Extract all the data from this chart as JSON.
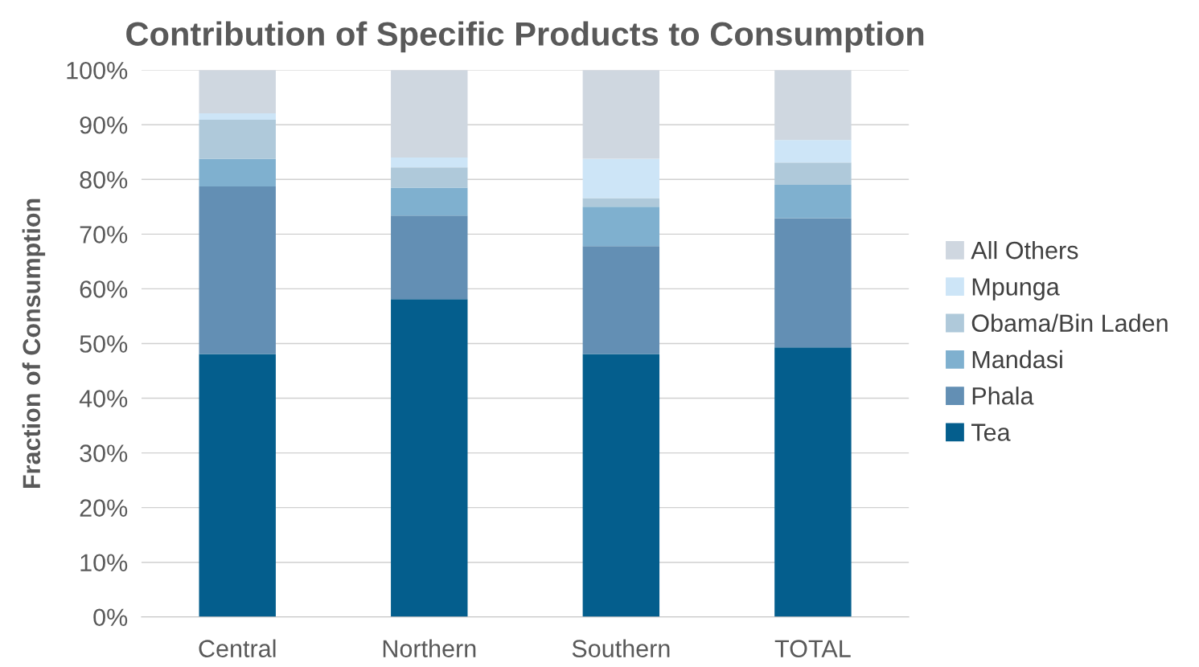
{
  "chart_data": {
    "type": "bar",
    "title": "Contribution of Specific Products to Consumption",
    "ylabel": "Fraction of Consumption",
    "categories": [
      "Central",
      "Northern",
      "Southern",
      "TOTAL"
    ],
    "stacked": true,
    "grid": "y",
    "legend": "right",
    "ylim": [
      0,
      100
    ],
    "yticks": [
      {
        "value": 0,
        "label": "0%"
      },
      {
        "value": 10,
        "label": "10%"
      },
      {
        "value": 20,
        "label": "20%"
      },
      {
        "value": 30,
        "label": "30%"
      },
      {
        "value": 40,
        "label": "40%"
      },
      {
        "value": 50,
        "label": "50%"
      },
      {
        "value": 60,
        "label": "60%"
      },
      {
        "value": 70,
        "label": "70%"
      },
      {
        "value": 80,
        "label": "80%"
      },
      {
        "value": 90,
        "label": "90%"
      },
      {
        "value": 100,
        "label": "100%"
      }
    ],
    "series": [
      {
        "name": "Tea",
        "color": "#045e8d",
        "values": [
          48.1,
          58.1,
          48.1,
          49.3
        ]
      },
      {
        "name": "Phala",
        "color": "#638fb4",
        "values": [
          30.6,
          15.3,
          19.7,
          23.6
        ]
      },
      {
        "name": "Mandasi",
        "color": "#7fb0cf",
        "values": [
          5.1,
          5.1,
          7.2,
          6.1
        ]
      },
      {
        "name": "Obama/Bin Laden",
        "color": "#afc9da",
        "values": [
          7.1,
          3.7,
          1.6,
          4.1
        ]
      },
      {
        "name": "Mpunga",
        "color": "#cde5f7",
        "values": [
          1.2,
          1.8,
          7.2,
          4.1
        ]
      },
      {
        "name": "All Others",
        "color": "#cfd7e0",
        "values": [
          7.9,
          16.0,
          16.2,
          12.8
        ]
      }
    ]
  }
}
